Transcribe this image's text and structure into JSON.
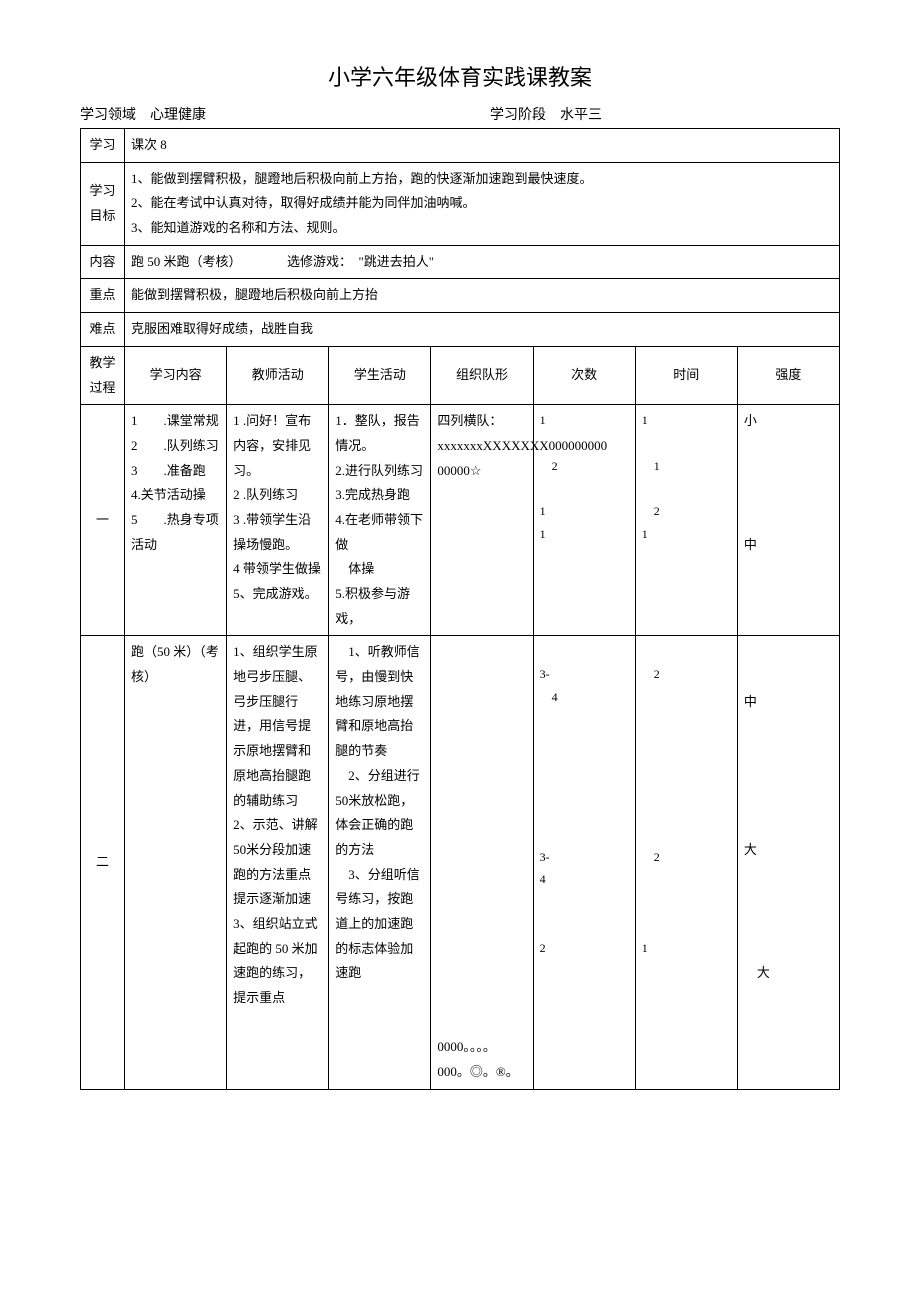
{
  "title": "小学六年级体育实践课教案",
  "header": {
    "field1_label": "学习领域",
    "field1_value": "心理健康",
    "field2_label": "学习阶段",
    "field2_value": "水平三"
  },
  "rows": {
    "lesson": {
      "label": "学习",
      "value": "课次 8"
    },
    "objectives": {
      "label": "学习目标",
      "text": "1、能做到摆臂积极，腿蹬地后积极向前上方抬，跑的快逐渐加速跑到最快速度。\n2、能在考试中认真对待，取得好成绩并能为同伴加油呐喊。\n3、能知道游戏的名称和方法、规则。"
    },
    "content": {
      "label": "内容",
      "text": "跑 50 米跑（考核）　　　　选修游戏：　\"跳进去拍人\""
    },
    "keypoint": {
      "label": "重点",
      "text": "能做到摆臂积极，腿蹬地后积极向前上方抬"
    },
    "difficulty": {
      "label": "难点",
      "text": "克服困难取得好成绩，战胜自我"
    }
  },
  "cols": {
    "phase": "教学过程",
    "content": "学习内容",
    "teacher": "教师活动",
    "student": "学生活动",
    "formation": "组织队形",
    "count": "次数",
    "time": "时间",
    "intensity": "强度"
  },
  "section1": {
    "phase": "一",
    "content": "1　　.课堂常规\n2　　.队列练习\n3　　.准备跑\n4.关节活动操\n5　　.热身专项活动",
    "teacher": "1 .问好！宣布内容，安排见习。\n2 .队列练习\n3 .带领学生沿操场慢跑。\n4 带领学生做操\n5、完成游戏。",
    "student": "1．整队，报告情况。\n2.进行队列练习\n3.完成热身跑\n4.在老师带领下做\n　体操\n5.积极参与游戏，",
    "formation": "四列横队：\nxxxxxxxXXXXXXX000000000 00000☆",
    "count": "1\n\n　2\n\n1\n1",
    "time": "1\n\n　1\n\n　2\n1",
    "intensity": "小\n\n\n\n\n中"
  },
  "section2": {
    "phase": "二",
    "content": "跑（50 米）（考核）",
    "teacher": "1、组织学生原地弓步压腿、弓步压腿行进，用信号提示原地摆臂和原地高抬腿跑的辅助练习\n2、示范、讲解 50米分段加速跑的方法重点提示逐渐加速\n3、组织站立式起跑的 50 米加速跑的练习，提示重点",
    "student": "　1、听教师信号，由慢到快地练习原地摆臂和原地高抬腿的节奏\n　2、分组进行 50米放松跑，体会正确的跑的方法\n　3、分组听信号练习，按跑道上的加速跑的标志体验加速跑",
    "formation": "\n\n\n\n\n\n\n\n\n\n\n\n\n\n\n\n0000。。。。\n000。◎。®。",
    "count": "\n3-\n　4\n\n\n\n\n\n\n3-\n4\n\n\n2",
    "time": "\n　2\n\n\n\n\n\n\n\n　2\n\n\n\n1",
    "intensity": "\n\n中\n\n\n\n\n\n大\n\n\n\n\n　大"
  }
}
